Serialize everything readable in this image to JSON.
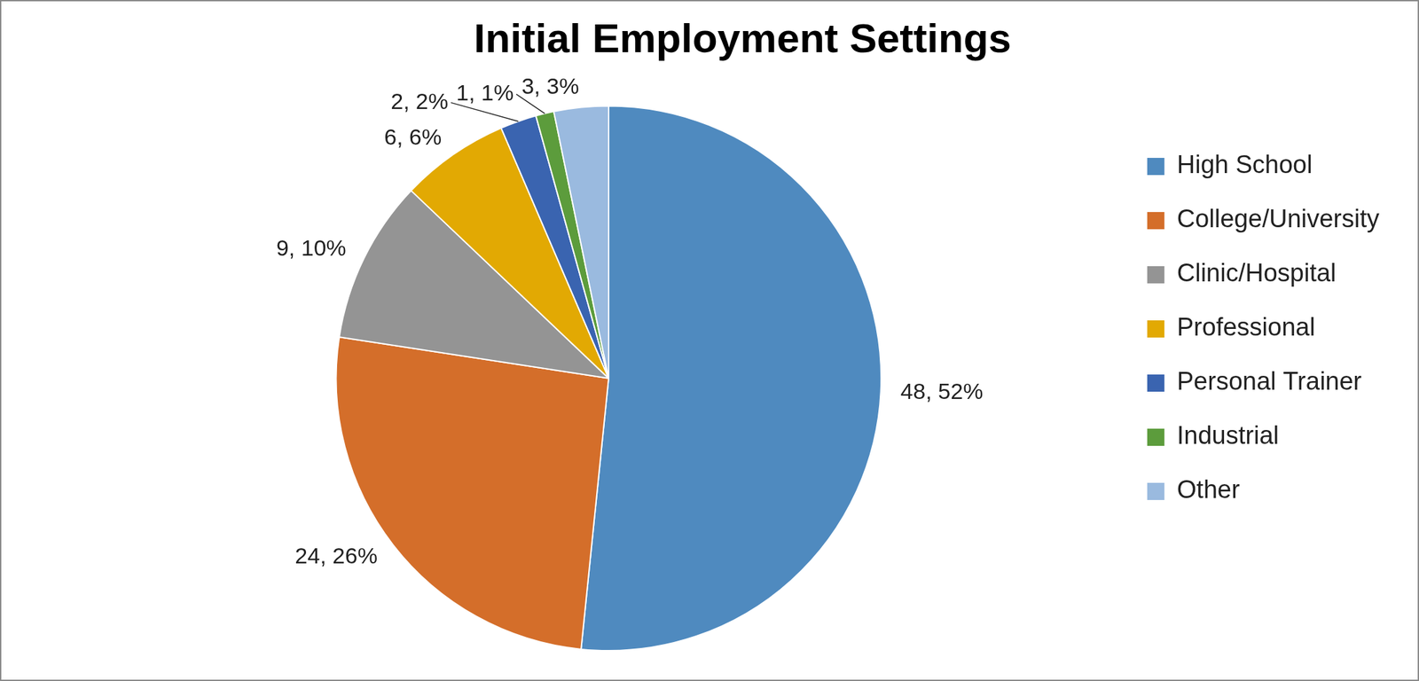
{
  "chart_data": {
    "type": "pie",
    "title": "Initial Employment Settings",
    "categories": [
      "High School",
      "College/University",
      "Clinic/Hospital",
      "Professional",
      "Personal Trainer",
      "Industrial",
      "Other"
    ],
    "values": [
      48,
      24,
      9,
      6,
      2,
      1,
      3
    ],
    "value_labels": [
      "48, 52%",
      "24, 26%",
      "9, 10%",
      "6, 6%",
      "2, 2%",
      "1, 1%",
      "3, 3%"
    ],
    "colors": [
      "#4f8abf",
      "#d46e2a",
      "#949494",
      "#e2a903",
      "#3a64b0",
      "#5c9c3c",
      "#9abadf"
    ],
    "legend": "right",
    "data_labels": true
  }
}
